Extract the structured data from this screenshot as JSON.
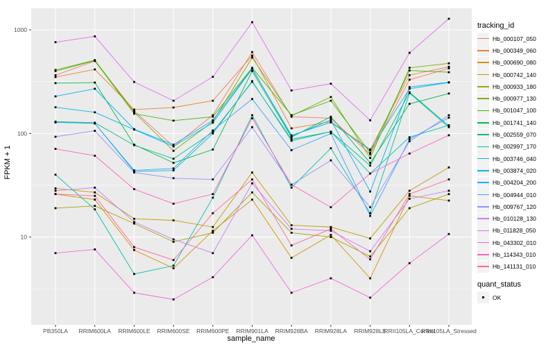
{
  "chart_data": {
    "type": "line",
    "title": "",
    "xlabel": "sample_name",
    "ylabel": "FPKM + 1",
    "y_scale": "log10",
    "y_ticks": [
      10,
      100,
      1000
    ],
    "y_minor_ticks": [
      3.162,
      31.62,
      316.2
    ],
    "ylim_log10": [
      0.15,
      3.21
    ],
    "grid": "white major and minor gridlines on gray panel",
    "legend_position": "right",
    "point_marker": "black-square",
    "categories": [
      "PB350LA",
      "RRIM600LA",
      "RRIM600LE",
      "RRIM600SE",
      "RRIM600PE",
      "RRIM901LA",
      "RRIM928BA",
      "RRIM928LA",
      "RRIM928LE",
      "RRII105LA_Control",
      "RRII105LA_Stressed"
    ],
    "series": [
      {
        "name": "Hb_000107_050",
        "color": "#F8766D",
        "values": [
          365,
          500,
          165,
          75,
          150,
          610,
          145,
          140,
          63,
          330,
          425
        ]
      },
      {
        "name": "Hb_000349_060",
        "color": "#EA8331",
        "values": [
          350,
          415,
          170,
          178,
          207,
          565,
          112,
          130,
          70,
          365,
          440
        ]
      },
      {
        "name": "Hb_000690_080",
        "color": "#D89000",
        "values": [
          26,
          23,
          7.5,
          5,
          11.5,
          23,
          6.3,
          10.5,
          4,
          25,
          22.5
        ]
      },
      {
        "name": "Hb_000742_140",
        "color": "#C09B00",
        "values": [
          29.5,
          27,
          15,
          14.5,
          12.5,
          42,
          13,
          12.5,
          9.7,
          28,
          47
        ]
      },
      {
        "name": "Hb_000933_180",
        "color": "#A3A500",
        "values": [
          19,
          20,
          13.5,
          9,
          11,
          27,
          11,
          10,
          6.5,
          19,
          26
        ]
      },
      {
        "name": "Hb_000977_130",
        "color": "#7CAE00",
        "values": [
          410,
          510,
          160,
          68,
          130,
          540,
          148,
          225,
          58,
          430,
          475
        ]
      },
      {
        "name": "Hb_001047_100",
        "color": "#39B600",
        "values": [
          400,
          505,
          155,
          133,
          145,
          430,
          150,
          207,
          65,
          405,
          390
        ]
      },
      {
        "name": "Hb_001741_140",
        "color": "#00BB4E",
        "values": [
          306,
          310,
          78,
          52,
          70,
          400,
          92,
          145,
          52,
          193,
          243
        ]
      },
      {
        "name": "Hb_002559_070",
        "color": "#00BF7D",
        "values": [
          130,
          127,
          77,
          57,
          103,
          315,
          88,
          104,
          49,
          250,
          118
        ]
      },
      {
        "name": "Hb_002997_170",
        "color": "#00C1A3",
        "values": [
          40,
          18.5,
          4.4,
          5.3,
          24,
          150,
          30,
          72,
          17,
          245,
          115
        ]
      },
      {
        "name": "Hb_003746_040",
        "color": "#00BFC4",
        "values": [
          128,
          125,
          43,
          44,
          100,
          320,
          85,
          104,
          41,
          92,
          120
        ]
      },
      {
        "name": "Hb_003874_020",
        "color": "#00BAE0",
        "values": [
          179,
          160,
          109,
          75,
          127,
          420,
          96,
          128,
          69,
          270,
          310
        ]
      },
      {
        "name": "Hb_004204_200",
        "color": "#00B0F6",
        "values": [
          228,
          270,
          110,
          78,
          134,
          425,
          94,
          135,
          27.5,
          280,
          312
        ]
      },
      {
        "name": "Hb_004944_010",
        "color": "#35A2FF",
        "values": [
          128,
          125,
          44,
          46,
          107,
          215,
          69,
          100,
          16,
          88,
          142
        ]
      },
      {
        "name": "Hb_009767_120",
        "color": "#9590FF",
        "values": [
          93,
          106,
          42,
          37,
          36,
          115,
          32,
          55,
          19.4,
          84,
          150
        ]
      },
      {
        "name": "Hb_010128_130",
        "color": "#C77CFF",
        "values": [
          28,
          30,
          14,
          9.5,
          7,
          33,
          12,
          11.5,
          7.3,
          23.4,
          28
        ]
      },
      {
        "name": "Hb_011828_050",
        "color": "#E76BF3",
        "values": [
          760,
          865,
          314,
          207,
          352,
          1185,
          260,
          302,
          134,
          600,
          1280
        ]
      },
      {
        "name": "Hb_043302_010",
        "color": "#FA62DB",
        "values": [
          7,
          7.6,
          2.9,
          2.5,
          4.1,
          10.4,
          2.9,
          4,
          2.6,
          5.6,
          10.7
        ]
      },
      {
        "name": "Hb_114343_010",
        "color": "#FF62BC",
        "values": [
          71,
          61,
          29,
          21,
          26,
          140,
          32,
          19.4,
          41,
          64,
          96
        ]
      },
      {
        "name": "Hb_141131_010",
        "color": "#FF6A98",
        "values": [
          26,
          25,
          8,
          6,
          17,
          36,
          8.3,
          12,
          6.1,
          26,
          36
        ]
      }
    ],
    "legend": {
      "tracking_title": "tracking_id",
      "quant_title": "quant_status",
      "quant_items": [
        {
          "label": "OK",
          "marker": "black-square"
        }
      ]
    }
  },
  "theme": {
    "background": "#FFFFFF",
    "panel_bg": "#EBEBEB",
    "grid_color": "#FFFFFF",
    "axis_text_color": "#4D4D4D",
    "text_color": "#000000",
    "legend_key_bg": "#F2F2F2",
    "point_color": "#000000"
  }
}
